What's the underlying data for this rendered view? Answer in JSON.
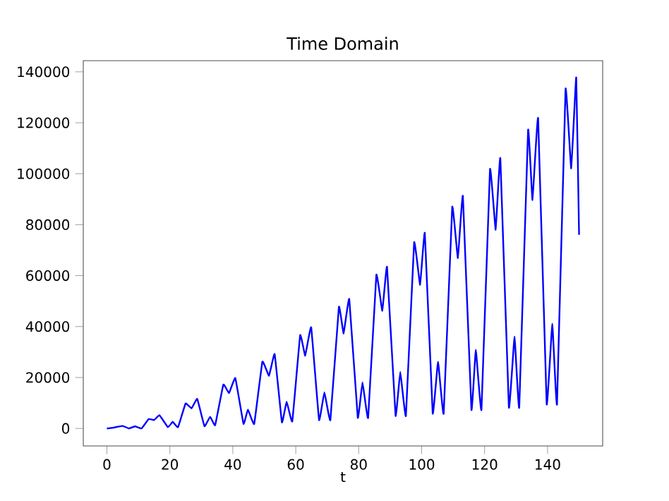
{
  "chart_data": {
    "type": "line",
    "title": "Time Domain",
    "xlabel": "t",
    "xlim": [
      -7.5,
      157.5
    ],
    "xticks": [
      0,
      20,
      40,
      60,
      80,
      100,
      120,
      140
    ],
    "ylim": [
      -6875,
      144375
    ],
    "yticks": [
      0,
      20000,
      40000,
      60000,
      80000,
      100000,
      120000,
      140000
    ],
    "grid": false,
    "series": [
      {
        "color": "#0000ff",
        "x": [
          0,
          2,
          5,
          7,
          9,
          11,
          13.3,
          15,
          16.7,
          19.4,
          20.9,
          22.6,
          25,
          26.9,
          28.7,
          31,
          32.8,
          34.4,
          37,
          38.8,
          40.8,
          43.4,
          44.8,
          46.8,
          49.4,
          51.5,
          53.3,
          55.6,
          57.1,
          58.9,
          61.4,
          63,
          64.9,
          67.4,
          69.1,
          71,
          73.7,
          75.2,
          77,
          79.7,
          81.2,
          83,
          85.6,
          87.5,
          89,
          91.7,
          93.2,
          95,
          97.6,
          99.5,
          101,
          103.5,
          105.2,
          107,
          109.7,
          111.5,
          113.1,
          115.8,
          117.2,
          119,
          121.7,
          123.5,
          125,
          127.7,
          129.5,
          131,
          133.8,
          135.2,
          137,
          139.7,
          141.5,
          143,
          145.7,
          147.5,
          149.1,
          150
        ],
        "values": [
          0,
          300,
          1000,
          0,
          800,
          0,
          3700,
          3300,
          5200,
          500,
          2600,
          500,
          9800,
          7900,
          11600,
          900,
          4600,
          1300,
          17200,
          13900,
          19800,
          1800,
          7400,
          1800,
          26200,
          20700,
          29200,
          2400,
          10500,
          2800,
          36600,
          28600,
          39700,
          3300,
          14200,
          3300,
          47700,
          37300,
          50800,
          4200,
          18100,
          4200,
          60300,
          46200,
          63400,
          5000,
          22200,
          5000,
          73000,
          56400,
          76700,
          5900,
          26200,
          5900,
          86900,
          66900,
          91200,
          7400,
          30900,
          7400,
          101700,
          78000,
          106000,
          8300,
          36100,
          8300,
          117100,
          89700,
          121700,
          9600,
          41100,
          9600,
          133200,
          102100,
          137800,
          76000
        ]
      }
    ]
  }
}
